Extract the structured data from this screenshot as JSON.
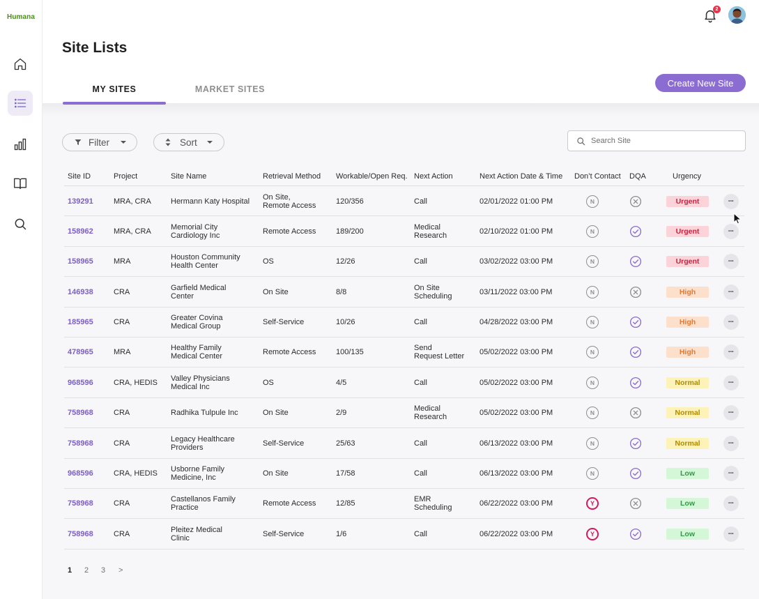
{
  "app": {
    "logo": "Humana"
  },
  "sidebar": {
    "items": [
      {
        "name": "home-icon",
        "active": false
      },
      {
        "name": "list-icon",
        "active": true
      },
      {
        "name": "bar-chart-icon",
        "active": false
      },
      {
        "name": "book-icon",
        "active": false
      },
      {
        "name": "search-icon",
        "active": false
      }
    ]
  },
  "topbar": {
    "notification_count": "2"
  },
  "page": {
    "title": "Site Lists"
  },
  "tabs": [
    {
      "label": "MY SITES",
      "active": true
    },
    {
      "label": "MARKET SITES",
      "active": false
    }
  ],
  "toolbar": {
    "create_label": "Create New Site",
    "filter_label": "Filter",
    "sort_label": "Sort",
    "search_placeholder": "Search Site"
  },
  "table": {
    "headers": [
      "Site ID",
      "Project",
      "Site Name",
      "Retrieval Method",
      "Workable/Open Req.",
      "Next Action",
      "Next Action Date & Time",
      "Don’t Contact",
      "DQA",
      "Urgency"
    ],
    "rows": [
      {
        "id": "139291",
        "project": "MRA, CRA",
        "name": [
          "Hermann Katy Hospital"
        ],
        "method": [
          "On Site,",
          "Remote Access"
        ],
        "req": "120/356",
        "action": [
          "Call"
        ],
        "date": "02/01/2022 01:00 PM",
        "dont_contact": "N",
        "dqa": "x",
        "urgency": "Urgent"
      },
      {
        "id": "158962",
        "project": "MRA, CRA",
        "name": [
          "Memorial City",
          "Cardiology Inc"
        ],
        "method": [
          "Remote Access"
        ],
        "req": "189/200",
        "action": [
          "Medical",
          "Research"
        ],
        "date": "02/10/2022 01:00 PM",
        "dont_contact": "N",
        "dqa": "check",
        "urgency": "Urgent"
      },
      {
        "id": "158965",
        "project": "MRA",
        "name": [
          "Houston Community",
          "Health Center"
        ],
        "method": [
          "OS"
        ],
        "req": "12/26",
        "action": [
          "Call"
        ],
        "date": "03/02/2022 03:00 PM",
        "dont_contact": "N",
        "dqa": "check",
        "urgency": "Urgent"
      },
      {
        "id": "146938",
        "project": "CRA",
        "name": [
          "Garfield Medical",
          "Center"
        ],
        "method": [
          "On Site"
        ],
        "req": "8/8",
        "action": [
          "On Site",
          "Scheduling"
        ],
        "date": "03/11/2022 03:00 PM",
        "dont_contact": "N",
        "dqa": "x",
        "urgency": "High"
      },
      {
        "id": "185965",
        "project": "CRA",
        "name": [
          "Greater Covina",
          "Medical Group"
        ],
        "method": [
          "Self-Service"
        ],
        "req": "10/26",
        "action": [
          "Call"
        ],
        "date": "04/28/2022 03:00 PM",
        "dont_contact": "N",
        "dqa": "check",
        "urgency": "High"
      },
      {
        "id": "478965",
        "project": "MRA",
        "name": [
          "Healthy Family",
          "Medical Center"
        ],
        "method": [
          "Remote Access"
        ],
        "req": "100/135",
        "action": [
          "Send",
          "Request Letter"
        ],
        "date": "05/02/2022 03:00 PM",
        "dont_contact": "N",
        "dqa": "check",
        "urgency": "High"
      },
      {
        "id": "968596",
        "project": "CRA, HEDIS",
        "name": [
          "Valley Physicians",
          "Medical Inc"
        ],
        "method": [
          "OS"
        ],
        "req": "4/5",
        "action": [
          "Call"
        ],
        "date": "05/02/2022 03:00 PM",
        "dont_contact": "N",
        "dqa": "check",
        "urgency": "Normal"
      },
      {
        "id": "758968",
        "project": "CRA",
        "name": [
          "Radhika Tulpule Inc"
        ],
        "method": [
          "On Site"
        ],
        "req": "2/9",
        "action": [
          "Medical",
          "Research"
        ],
        "date": "05/02/2022 03:00 PM",
        "dont_contact": "N",
        "dqa": "x",
        "urgency": "Normal"
      },
      {
        "id": "758968",
        "project": "CRA",
        "name": [
          "Legacy Healthcare",
          "Providers"
        ],
        "method": [
          "Self-Service"
        ],
        "req": "25/63",
        "action": [
          "Call"
        ],
        "date": "06/13/2022 03:00 PM",
        "dont_contact": "N",
        "dqa": "check",
        "urgency": "Normal"
      },
      {
        "id": "968596",
        "project": "CRA, HEDIS",
        "name": [
          "Usborne Family",
          "Medicine, Inc"
        ],
        "method": [
          "On Site"
        ],
        "req": "17/58",
        "action": [
          "Call"
        ],
        "date": "06/13/2022 03:00 PM",
        "dont_contact": "N",
        "dqa": "check",
        "urgency": "Low"
      },
      {
        "id": "758968",
        "project": "CRA",
        "name": [
          "Castellanos Family",
          "Practice"
        ],
        "method": [
          "Remote Access"
        ],
        "req": "12/85",
        "action": [
          "EMR",
          "Scheduling"
        ],
        "date": "06/22/2022 03:00 PM",
        "dont_contact": "Y",
        "dqa": "x",
        "urgency": "Low"
      },
      {
        "id": "758968",
        "project": "CRA",
        "name": [
          "Pleitez Medical",
          "Clinic"
        ],
        "method": [
          "Self-Service"
        ],
        "req": "1/6",
        "action": [
          "Call"
        ],
        "date": "06/22/2022 03:00 PM",
        "dont_contact": "Y",
        "dqa": "check",
        "urgency": "Low"
      }
    ]
  },
  "urgency_colors": {
    "Urgent": {
      "bg": "#fbd3d8",
      "fg": "#c9243f"
    },
    "High": {
      "bg": "#fde0cc",
      "fg": "#e07a36"
    },
    "Normal": {
      "bg": "#fdf3b8",
      "fg": "#b08a00"
    },
    "Low": {
      "bg": "#d4f7d8",
      "fg": "#2f9a43"
    }
  },
  "pagination": {
    "pages": [
      "1",
      "2",
      "3"
    ],
    "next": ">",
    "current": "1"
  },
  "colors": {
    "accent": "#8b6cd0",
    "link": "#7b5fc4"
  }
}
